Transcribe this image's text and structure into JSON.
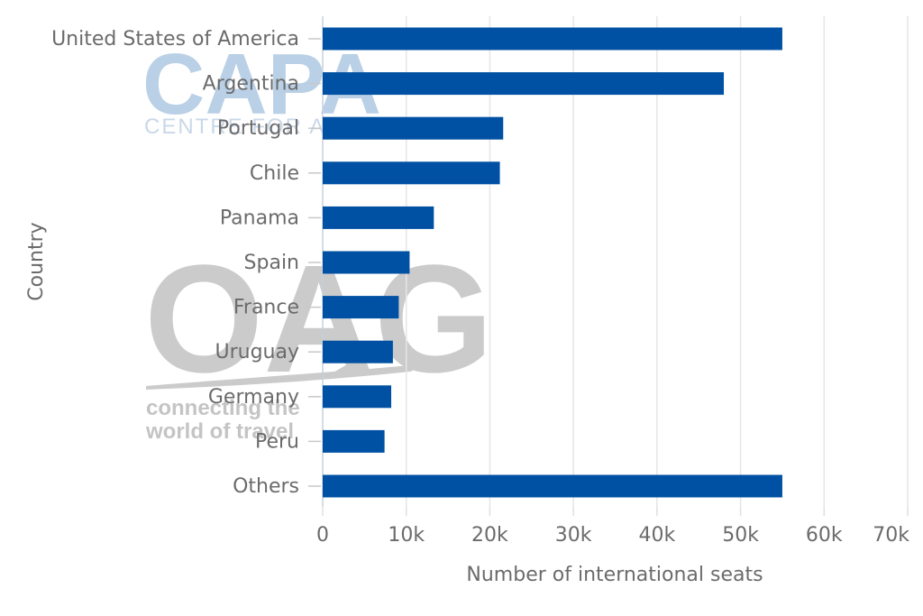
{
  "chart_data": {
    "type": "bar",
    "orientation": "horizontal",
    "categories": [
      "United States of America",
      "Argentina",
      "Portugal",
      "Chile",
      "Panama",
      "Spain",
      "France",
      "Uruguay",
      "Germany",
      "Peru",
      "Others"
    ],
    "values": [
      55000,
      48000,
      21600,
      21200,
      13300,
      10400,
      9100,
      8400,
      8200,
      7400,
      55000
    ],
    "xlabel": "Number of international seats",
    "ylabel": "Country",
    "xlim": [
      0,
      70000
    ],
    "xticks": [
      "0",
      "10k",
      "20k",
      "30k",
      "40k",
      "50k",
      "60k",
      "70k"
    ],
    "grid": true,
    "colors": {
      "bar": "#0051a3",
      "grid": "#e6e6e6",
      "text": "#6b6b6b"
    }
  },
  "watermarks": {
    "capa": "CAPA",
    "capa_sub": "CENTRE FOR A",
    "oag": "OAG",
    "oag_tag_line1": "connecting the",
    "oag_tag_line2": "world of travel"
  }
}
